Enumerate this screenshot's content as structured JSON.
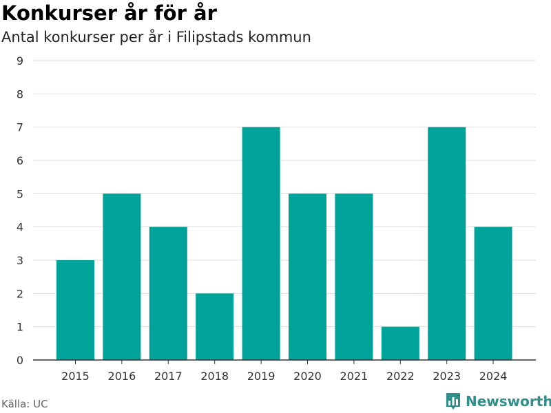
{
  "header": {
    "title": "Konkurser år för år",
    "subtitle": "Antal konkurser per år i Filipstads kommun"
  },
  "footer": {
    "source": "Källa: UC",
    "brand": "Newsworthy",
    "brand_icon": "bar-chart-logo-icon"
  },
  "colors": {
    "bar": "#00a39a",
    "grid": "#dddddd",
    "axis": "#333333",
    "brand": "#2f8f8a"
  },
  "chart_data": {
    "type": "bar",
    "title": "Konkurser år för år",
    "subtitle": "Antal konkurser per år i Filipstads kommun",
    "categories": [
      "2015",
      "2016",
      "2017",
      "2018",
      "2019",
      "2020",
      "2021",
      "2022",
      "2023",
      "2024"
    ],
    "values": [
      3,
      5,
      4,
      2,
      7,
      5,
      5,
      1,
      7,
      4
    ],
    "xlabel": "",
    "ylabel": "",
    "ylim": [
      0,
      9
    ],
    "yticks": [
      0,
      1,
      2,
      3,
      4,
      5,
      6,
      7,
      8,
      9
    ],
    "grid": true,
    "legend": "none"
  }
}
